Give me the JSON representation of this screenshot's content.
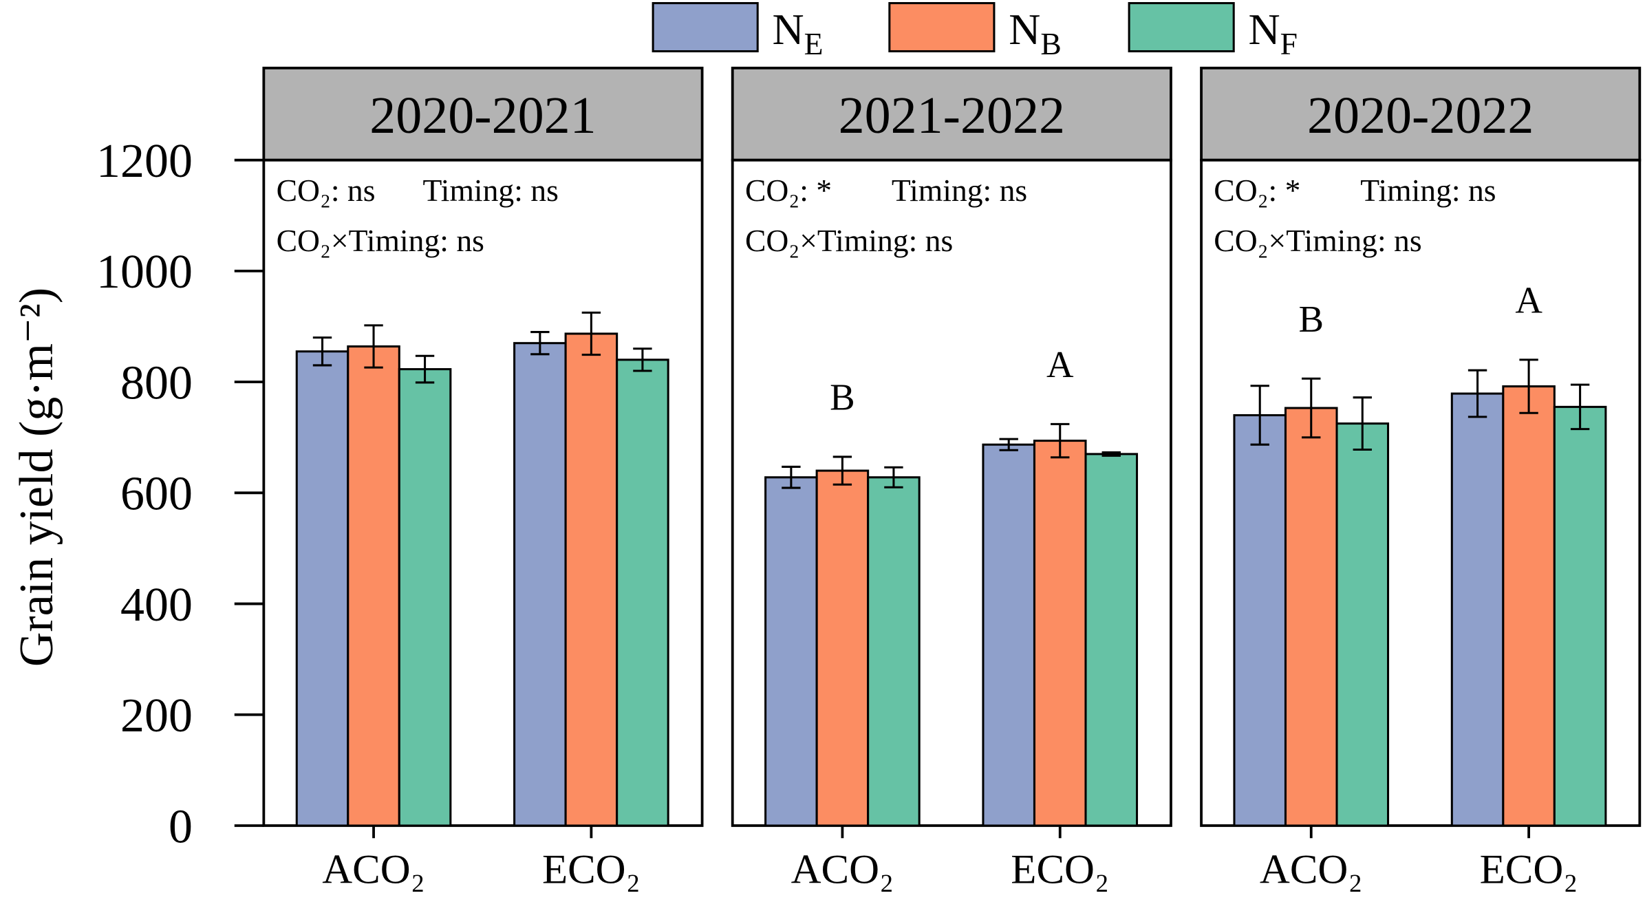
{
  "chart_data": [
    {
      "type": "bar",
      "title": "2020-2021",
      "ylabel": "Grain yield (g·m⁻²)",
      "categories": [
        "ACO₂",
        "ECO₂"
      ],
      "series": [
        {
          "name": "NE",
          "color": "#8fa0cb",
          "values": [
            855,
            870
          ],
          "errors": [
            25,
            20
          ]
        },
        {
          "name": "NB",
          "color": "#fc8d62",
          "values": [
            864,
            887
          ],
          "errors": [
            38,
            38
          ]
        },
        {
          "name": "NF",
          "color": "#66c2a5",
          "values": [
            823,
            840
          ],
          "errors": [
            24,
            20
          ]
        }
      ],
      "ylim": [
        0,
        1200
      ],
      "yticks": [
        0,
        200,
        400,
        600,
        800,
        1000,
        1200
      ],
      "annotations": [
        "CO₂: ns",
        "Timing: ns",
        "CO₂×Timing: ns"
      ]
    },
    {
      "type": "bar",
      "title": "2021-2022",
      "categories": [
        "ACO₂",
        "ECO₂"
      ],
      "series": [
        {
          "name": "NE",
          "color": "#8fa0cb",
          "values": [
            628,
            687
          ],
          "errors": [
            19,
            10
          ]
        },
        {
          "name": "NB",
          "color": "#fc8d62",
          "values": [
            640,
            694
          ],
          "errors": [
            25,
            30
          ]
        },
        {
          "name": "NF",
          "color": "#66c2a5",
          "values": [
            628,
            670
          ],
          "errors": [
            18,
            3
          ]
        }
      ],
      "ylim": [
        0,
        1200
      ],
      "annotations": [
        "CO₂: *",
        "Timing: ns",
        "CO₂×Timing: ns"
      ],
      "group_labels": [
        "B",
        "A"
      ]
    },
    {
      "type": "bar",
      "title": "2020-2022",
      "categories": [
        "ACO₂",
        "ECO₂"
      ],
      "series": [
        {
          "name": "NE",
          "color": "#8fa0cb",
          "values": [
            740,
            779
          ],
          "errors": [
            53,
            42
          ]
        },
        {
          "name": "NB",
          "color": "#fc8d62",
          "values": [
            753,
            792
          ],
          "errors": [
            53,
            48
          ]
        },
        {
          "name": "NF",
          "color": "#66c2a5",
          "values": [
            725,
            755
          ],
          "errors": [
            47,
            40
          ]
        }
      ],
      "ylim": [
        0,
        1200
      ],
      "annotations": [
        "CO₂: *",
        "Timing: ns",
        "CO₂×Timing: ns"
      ],
      "group_labels": [
        "B",
        "A"
      ]
    }
  ]
}
